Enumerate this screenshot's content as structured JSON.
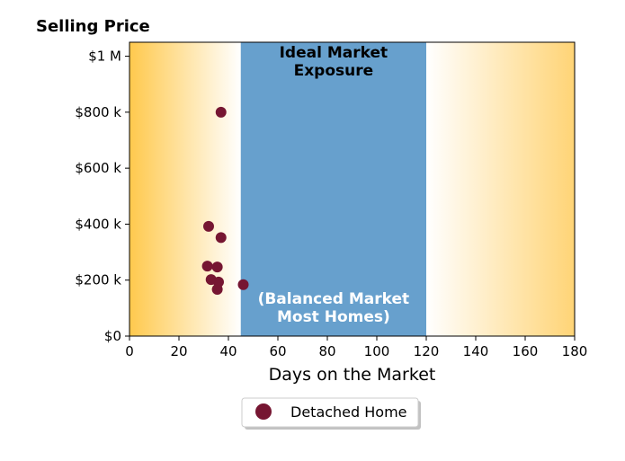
{
  "chart_data": {
    "type": "scatter",
    "title": "Selling Price",
    "xlabel": "Days on the Market",
    "ylabel": "",
    "xlim": [
      0,
      180
    ],
    "ylim": [
      0,
      1050000
    ],
    "x_ticks": [
      0,
      20,
      40,
      60,
      80,
      100,
      120,
      140,
      160,
      180
    ],
    "x_tick_labels": [
      "0",
      "20",
      "40",
      "60",
      "80",
      "100",
      "120",
      "140",
      "160",
      "180"
    ],
    "y_ticks": [
      0,
      200000,
      400000,
      600000,
      800000,
      1000000
    ],
    "y_tick_labels": [
      "$0",
      "$200 k",
      "$400 k",
      "$600 k",
      "$800 k",
      "$1 M"
    ],
    "grid": false,
    "legend_position": "bottom-center",
    "bands": [
      {
        "x_range": [
          0,
          45
        ],
        "style": "gradient",
        "from": "#ffc94d",
        "to": "#ffffff"
      },
      {
        "x_range": [
          45,
          120
        ],
        "style": "solid",
        "color": "#67a0cd",
        "label_top": "Ideal Market\nExposure",
        "label_bottom": "(Balanced Market\nMost Homes)"
      },
      {
        "x_range": [
          120,
          180
        ],
        "style": "gradient",
        "from": "#ffffff",
        "to": "#ffd476"
      }
    ],
    "series": [
      {
        "name": "Detached Home",
        "color": "#761632",
        "points": [
          {
            "x": 37,
            "y": 800000
          },
          {
            "x": 32,
            "y": 392000
          },
          {
            "x": 37,
            "y": 352000
          },
          {
            "x": 31.5,
            "y": 250000
          },
          {
            "x": 35.5,
            "y": 247000
          },
          {
            "x": 33,
            "y": 202000
          },
          {
            "x": 36,
            "y": 193000
          },
          {
            "x": 35.5,
            "y": 167000
          },
          {
            "x": 46,
            "y": 184000
          }
        ]
      }
    ]
  }
}
